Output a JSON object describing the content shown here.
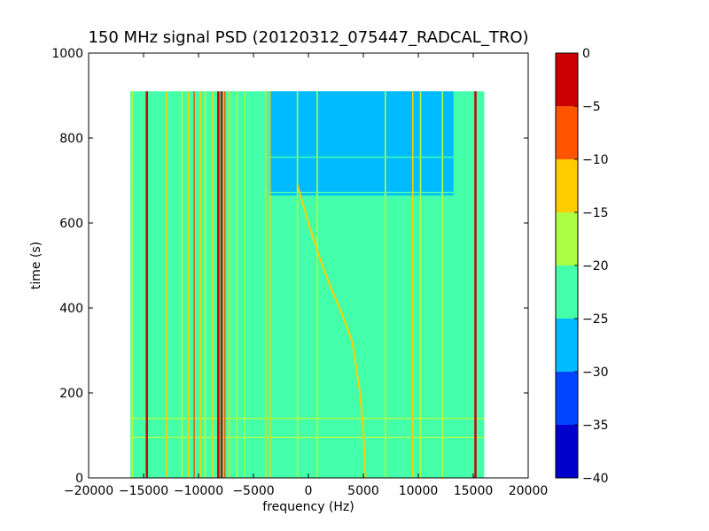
{
  "chart_data": {
    "type": "heatmap",
    "title": "150 MHz signal PSD (20120312_075447_RADCAL_TRO)",
    "xlabel": "frequency (Hz)",
    "ylabel": "time (s)",
    "xlim": [
      -20000,
      20000
    ],
    "ylim": [
      0,
      1000
    ],
    "x_ticks": [
      -20000,
      -15000,
      -10000,
      -5000,
      0,
      5000,
      10000,
      15000,
      20000
    ],
    "y_ticks": [
      0,
      200,
      400,
      600,
      800,
      1000
    ],
    "grid": false,
    "data_extent": {
      "x": [
        -16200,
        16000
      ],
      "y": [
        0,
        910
      ]
    },
    "background_level": -22.5,
    "quiet_region": {
      "x": [
        -3600,
        13200
      ],
      "y": [
        665,
        910
      ],
      "level": -27.5
    },
    "horizontal_bands": [
      {
        "t": 755,
        "level": -22.5
      },
      {
        "t": 672,
        "level": -22.5
      },
      {
        "t": 140,
        "level": -17.5
      },
      {
        "t": 95,
        "level": -17.5
      }
    ],
    "vertical_lines": [
      {
        "f": -16000,
        "level": -17.5
      },
      {
        "f": -14700,
        "level": -2.5
      },
      {
        "f": -12900,
        "level": -12.5
      },
      {
        "f": -11500,
        "level": -17.5
      },
      {
        "f": -10900,
        "level": -12.5
      },
      {
        "f": -10400,
        "level": -7.5
      },
      {
        "f": -9800,
        "level": -12.5
      },
      {
        "f": -9400,
        "level": -17.5
      },
      {
        "f": -8700,
        "level": -12.5
      },
      {
        "f": -8200,
        "level": -2.5
      },
      {
        "f": -7900,
        "level": -2.5
      },
      {
        "f": -7600,
        "level": -7.5
      },
      {
        "f": -7200,
        "level": -12.5
      },
      {
        "f": -6500,
        "level": -17.5
      },
      {
        "f": -5800,
        "level": -17.5
      },
      {
        "f": -3900,
        "level": -12.5
      },
      {
        "f": -3500,
        "level": -12.5
      },
      {
        "f": -1000,
        "level": -17.5
      },
      {
        "f": 800,
        "level": -17.5
      },
      {
        "f": 7000,
        "level": -17.5
      },
      {
        "f": 9500,
        "level": -12.5
      },
      {
        "f": 10200,
        "level": -17.5
      },
      {
        "f": 12200,
        "level": -17.5
      },
      {
        "f": 15200,
        "level": -2.5
      }
    ],
    "drift_line": {
      "level": -12.5,
      "points": [
        [
          -1000,
          690
        ],
        [
          0,
          600
        ],
        [
          1000,
          520
        ],
        [
          2000,
          450
        ],
        [
          3000,
          390
        ],
        [
          4000,
          320
        ],
        [
          4700,
          200
        ],
        [
          5000,
          110
        ],
        [
          5200,
          0
        ]
      ]
    },
    "colorbar": {
      "levels": [
        -40,
        -35,
        -30,
        -25,
        -20,
        -15,
        -10,
        -5,
        0
      ],
      "ticks": [
        0,
        -5,
        -10,
        -15,
        -20,
        -25,
        -30,
        -35,
        -40
      ],
      "colors": [
        "#0000cc",
        "#0044ff",
        "#00bbff",
        "#44ffaa",
        "#aaff44",
        "#ffcc00",
        "#ff5500",
        "#cc0000"
      ]
    }
  }
}
